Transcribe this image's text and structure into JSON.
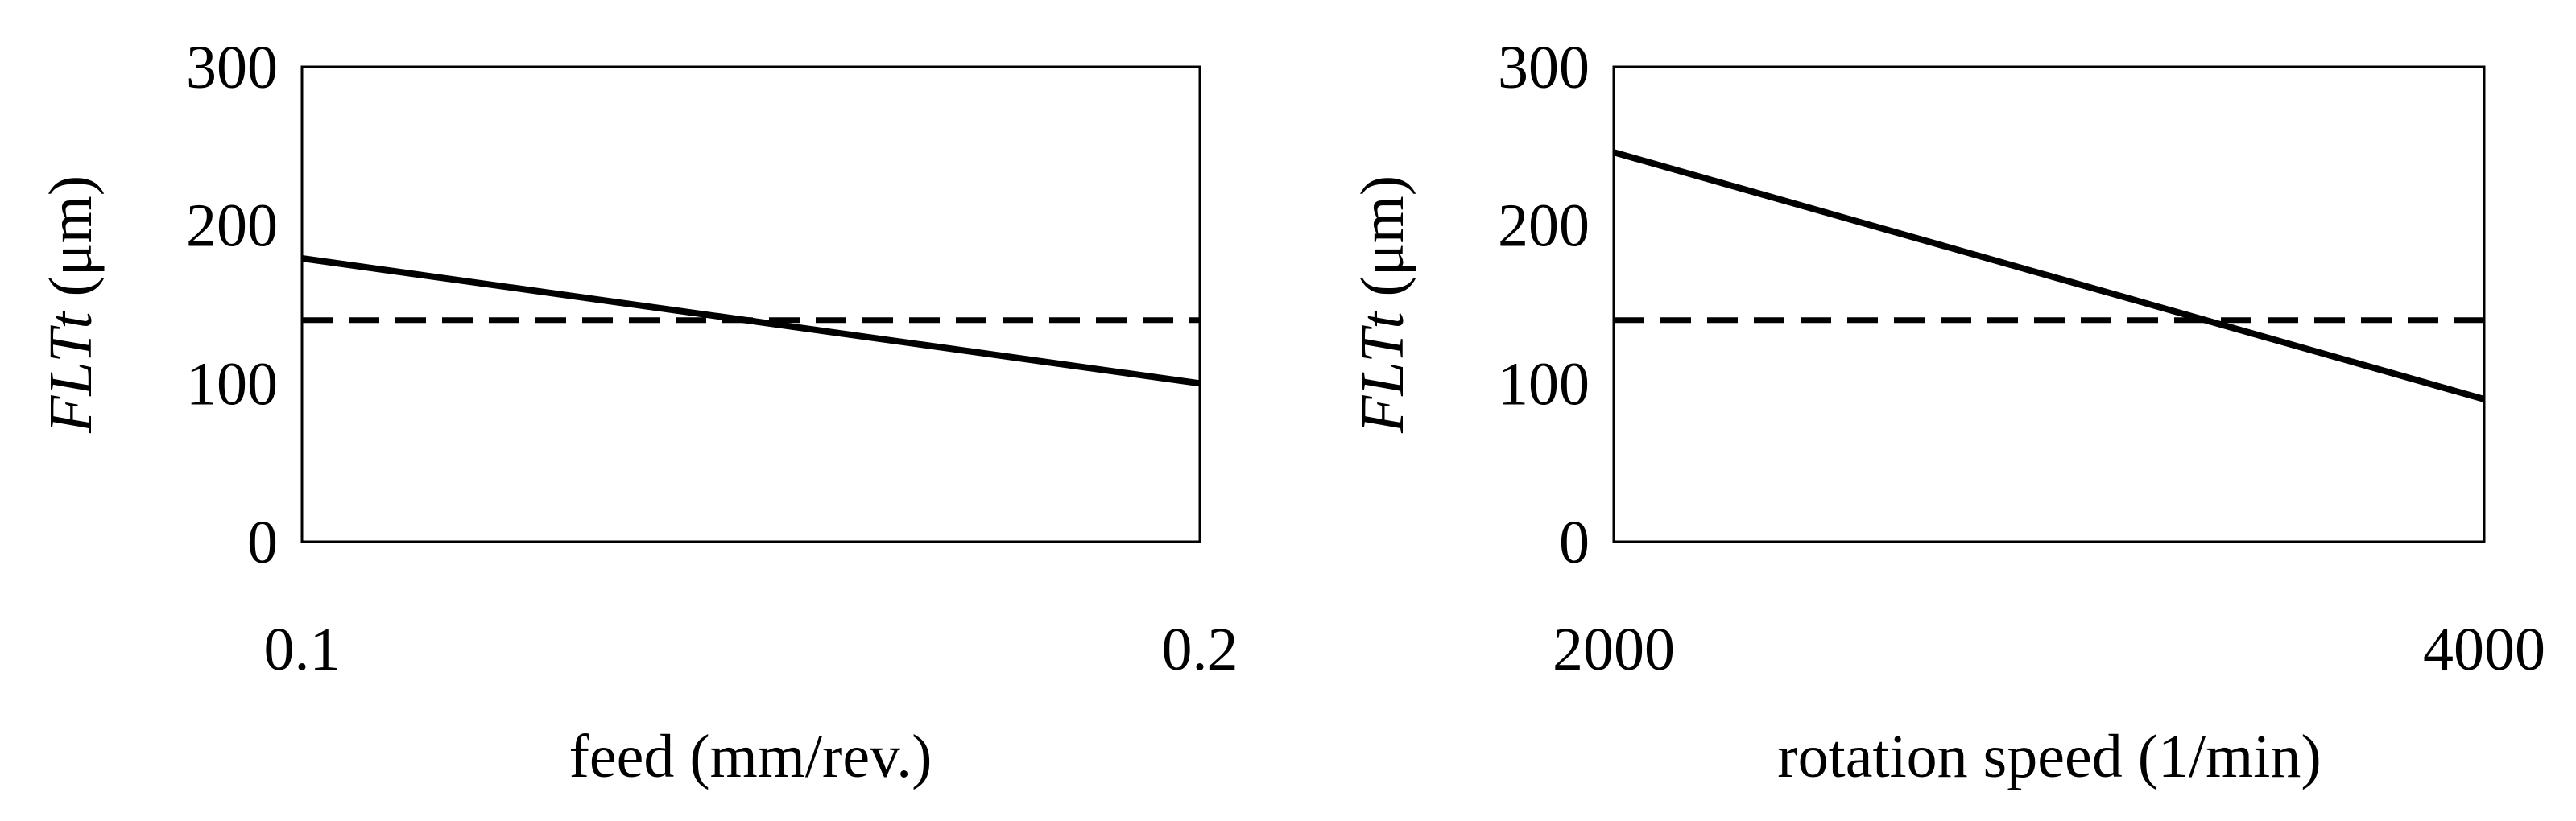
{
  "chart_data": [
    {
      "type": "line",
      "xlabel": "feed (mm/rev.)",
      "ylabel_italic": "FLTt",
      "ylabel_unit": " (μm)",
      "x_ticks": [
        "0.1",
        "0.2"
      ],
      "y_ticks": [
        "0",
        "100",
        "200",
        "300"
      ],
      "xlim": [
        0.1,
        0.2
      ],
      "ylim": [
        0,
        300
      ],
      "grid": false,
      "legend": "none",
      "series": [
        {
          "style": "solid",
          "x": [
            0.1,
            0.2
          ],
          "y": [
            179,
            100
          ]
        },
        {
          "style": "dashed",
          "x": [
            0.1,
            0.2
          ],
          "y": [
            140,
            140
          ]
        }
      ]
    },
    {
      "type": "line",
      "xlabel": "rotation speed (1/min)",
      "ylabel_italic": "FLTt",
      "ylabel_unit": " (μm)",
      "x_ticks": [
        "2000",
        "4000"
      ],
      "y_ticks": [
        "0",
        "100",
        "200",
        "300"
      ],
      "xlim": [
        2000,
        4000
      ],
      "ylim": [
        0,
        300
      ],
      "grid": false,
      "legend": "none",
      "series": [
        {
          "style": "solid",
          "x": [
            2000,
            4000
          ],
          "y": [
            246,
            90
          ]
        },
        {
          "style": "dashed",
          "x": [
            2000,
            4000
          ],
          "y": [
            140,
            140
          ]
        }
      ]
    }
  ],
  "colors": {
    "line": "#000000",
    "frame": "#000000",
    "background": "#ffffff"
  }
}
